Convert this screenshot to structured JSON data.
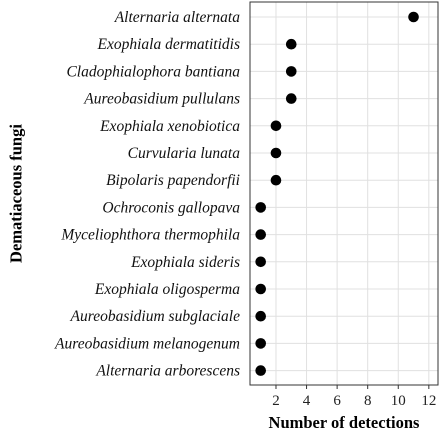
{
  "chart_data": {
    "type": "scatter",
    "title": "",
    "xlabel": "Number of detections",
    "ylabel": "Dematiaceous fungi",
    "categories": [
      "Alternaria alternata",
      "Exophiala dermatitidis",
      "Cladophialophora bantiana",
      "Aureobasidium pullulans",
      "Exophiala xenobiotica",
      "Curvularia lunata",
      "Bipolaris papendorfii",
      "Ochroconis gallopava",
      "Myceliophthora thermophila",
      "Exophiala sideris",
      "Exophiala oligosperma",
      "Aureobasidium subglaciale",
      "Aureobasidium melanogenum",
      "Alternaria arborescens"
    ],
    "values": [
      11,
      3,
      3,
      3,
      2,
      2,
      2,
      1,
      1,
      1,
      1,
      1,
      1,
      1
    ],
    "xlim": [
      0.3,
      12.6
    ],
    "xticks": [
      2,
      4,
      6,
      8,
      10,
      12
    ],
    "grid": true,
    "marker_color": "#000000",
    "grid_color": "#e0e0e0",
    "legend": "none"
  }
}
